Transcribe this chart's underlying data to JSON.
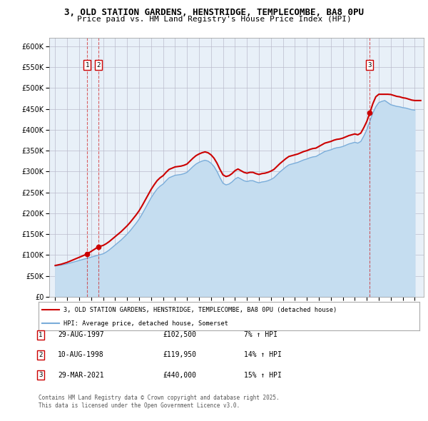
{
  "title_line1": "3, OLD STATION GARDENS, HENSTRIDGE, TEMPLECOMBE, BA8 0PU",
  "title_line2": "Price paid vs. HM Land Registry's House Price Index (HPI)",
  "ylim": [
    0,
    620000
  ],
  "yticks": [
    0,
    50000,
    100000,
    150000,
    200000,
    250000,
    300000,
    350000,
    400000,
    450000,
    500000,
    550000,
    600000
  ],
  "xlim_start": 1994.5,
  "xlim_end": 2025.75,
  "legend_line1": "3, OLD STATION GARDENS, HENSTRIDGE, TEMPLECOMBE, BA8 0PU (detached house)",
  "legend_line2": "HPI: Average price, detached house, Somerset",
  "transactions": [
    {
      "id": 1,
      "date": "29-AUG-1997",
      "price": 102500,
      "pct": "7%",
      "dir": "↑",
      "x": 1997.66
    },
    {
      "id": 2,
      "date": "10-AUG-1998",
      "price": 119950,
      "pct": "14%",
      "dir": "↑",
      "x": 1998.61
    },
    {
      "id": 3,
      "date": "29-MAR-2021",
      "price": 440000,
      "pct": "15%",
      "dir": "↑",
      "x": 2021.25
    }
  ],
  "footer": "Contains HM Land Registry data © Crown copyright and database right 2025.\nThis data is licensed under the Open Government Licence v3.0.",
  "price_color": "#cc0000",
  "hpi_color": "#7aadda",
  "hpi_fill_color": "#c5ddf0",
  "background_color": "#e8f0f8",
  "grid_color": "#bbbbcc",
  "hpi_data_x": [
    1995.0,
    1995.25,
    1995.5,
    1995.75,
    1996.0,
    1996.25,
    1996.5,
    1996.75,
    1997.0,
    1997.25,
    1997.5,
    1997.75,
    1998.0,
    1998.25,
    1998.5,
    1998.75,
    1999.0,
    1999.25,
    1999.5,
    1999.75,
    2000.0,
    2000.25,
    2000.5,
    2000.75,
    2001.0,
    2001.25,
    2001.5,
    2001.75,
    2002.0,
    2002.25,
    2002.5,
    2002.75,
    2003.0,
    2003.25,
    2003.5,
    2003.75,
    2004.0,
    2004.25,
    2004.5,
    2004.75,
    2005.0,
    2005.25,
    2005.5,
    2005.75,
    2006.0,
    2006.25,
    2006.5,
    2006.75,
    2007.0,
    2007.25,
    2007.5,
    2007.75,
    2008.0,
    2008.25,
    2008.5,
    2008.75,
    2009.0,
    2009.25,
    2009.5,
    2009.75,
    2010.0,
    2010.25,
    2010.5,
    2010.75,
    2011.0,
    2011.25,
    2011.5,
    2011.75,
    2012.0,
    2012.25,
    2012.5,
    2012.75,
    2013.0,
    2013.25,
    2013.5,
    2013.75,
    2014.0,
    2014.25,
    2014.5,
    2014.75,
    2015.0,
    2015.25,
    2015.5,
    2015.75,
    2016.0,
    2016.25,
    2016.5,
    2016.75,
    2017.0,
    2017.25,
    2017.5,
    2017.75,
    2018.0,
    2018.25,
    2018.5,
    2018.75,
    2019.0,
    2019.25,
    2019.5,
    2019.75,
    2020.0,
    2020.25,
    2020.5,
    2020.75,
    2021.0,
    2021.25,
    2021.5,
    2021.75,
    2022.0,
    2022.25,
    2022.5,
    2022.75,
    2023.0,
    2023.25,
    2023.5,
    2023.75,
    2024.0,
    2024.25,
    2024.5,
    2024.75,
    2025.0
  ],
  "hpi_data_y": [
    74000,
    75000,
    76000,
    77500,
    79000,
    81000,
    83000,
    85000,
    87000,
    89000,
    91000,
    93000,
    95000,
    97000,
    99000,
    101000,
    103000,
    107000,
    112000,
    118000,
    124000,
    130000,
    136000,
    143000,
    150000,
    158000,
    167000,
    176000,
    186000,
    198000,
    211000,
    224000,
    237000,
    248000,
    258000,
    265000,
    270000,
    278000,
    285000,
    288000,
    291000,
    292000,
    293000,
    295000,
    298000,
    305000,
    312000,
    318000,
    322000,
    325000,
    327000,
    325000,
    320000,
    312000,
    300000,
    285000,
    272000,
    268000,
    270000,
    275000,
    282000,
    286000,
    282000,
    278000,
    276000,
    278000,
    278000,
    275000,
    273000,
    275000,
    276000,
    278000,
    281000,
    285000,
    292000,
    299000,
    305000,
    311000,
    316000,
    318000,
    320000,
    322000,
    325000,
    328000,
    330000,
    333000,
    335000,
    336000,
    340000,
    344000,
    348000,
    350000,
    352000,
    355000,
    357000,
    358000,
    360000,
    363000,
    366000,
    368000,
    370000,
    368000,
    372000,
    385000,
    400000,
    420000,
    440000,
    455000,
    465000,
    468000,
    470000,
    465000,
    460000,
    458000,
    456000,
    455000,
    453000,
    452000,
    450000,
    448000,
    447000
  ],
  "anchors_x": [
    1995.0,
    1997.66,
    1998.61,
    2021.25,
    2025.5
  ],
  "anchors_y": [
    75000,
    102500,
    119950,
    440000,
    470000
  ]
}
